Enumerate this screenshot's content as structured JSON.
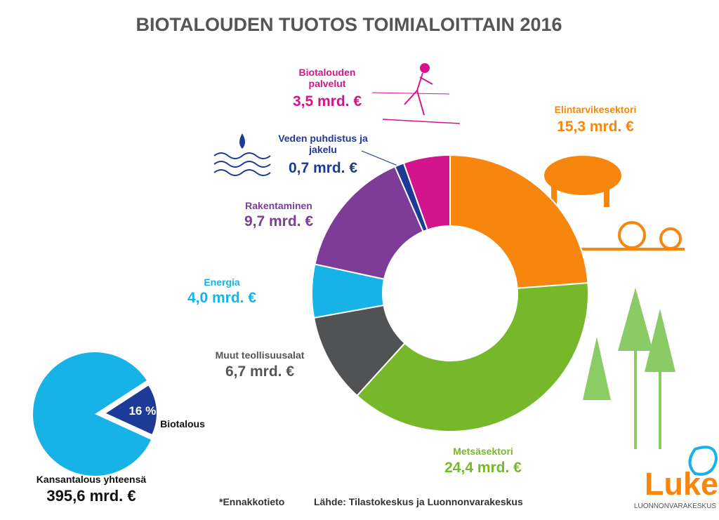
{
  "chart_data": [
    {
      "type": "donut",
      "title": "BIOTALOUDEN TUOTOS TOIMIALOITTAIN 2016",
      "categories": [
        "Elintarvikesektori",
        "Metsäsektori",
        "Muut teollisuusalat",
        "Energia",
        "Rakentaminen",
        "Veden puhdistus ja jakelu",
        "Biotalouden palvelut"
      ],
      "values": [
        15.3,
        24.4,
        6.7,
        4.0,
        9.7,
        0.7,
        3.5
      ],
      "value_labels": [
        "15,3 mrd. €",
        "24,4 mrd. €",
        "6,7 mrd. €",
        "4,0 mrd. €",
        "9,7 mrd. €",
        "0,7 mrd. €",
        "3,5 mrd. €"
      ],
      "colors": [
        "#f7860f",
        "#76b82a",
        "#515254",
        "#17b3e6",
        "#7d3c98",
        "#1d3b96",
        "#d4148c"
      ],
      "label_colors": [
        "#f7860f",
        "#76b82a",
        "#555555",
        "#17b3e6",
        "#7d3c98",
        "#1d3b96",
        "#d4148c"
      ]
    },
    {
      "type": "pie",
      "categories": [
        "Biotalous",
        null
      ],
      "values": [
        16,
        84
      ],
      "value_labels": [
        "16 %",
        null
      ],
      "colors": [
        "#1d3b96",
        "#17b3e6"
      ],
      "total_name": "Kansantalous yhteensä",
      "total_label": "395,6 mrd. €"
    }
  ],
  "footnote": "*Ennakkotieto",
  "source": "Lähde: Tilastokeskus ja Luonnonvarakeskus",
  "logo": {
    "name": "Luke",
    "subtitle": "LUONNONVARAKESKUS"
  }
}
